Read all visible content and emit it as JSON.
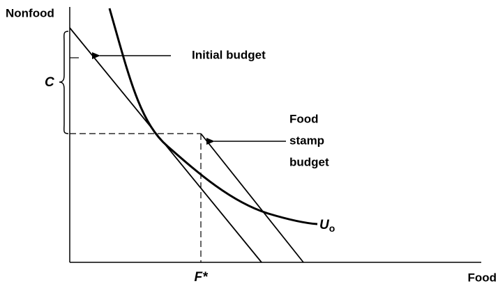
{
  "axes": {
    "y_label": "Nonfood",
    "x_label": "Food"
  },
  "annotations": {
    "initial_budget": "Initial budget",
    "food_stamp_budget": [
      "Food",
      "stamp",
      "budget"
    ],
    "c": "C",
    "f_star": "F*",
    "utility": {
      "base": "U",
      "subscript": "o"
    }
  }
}
